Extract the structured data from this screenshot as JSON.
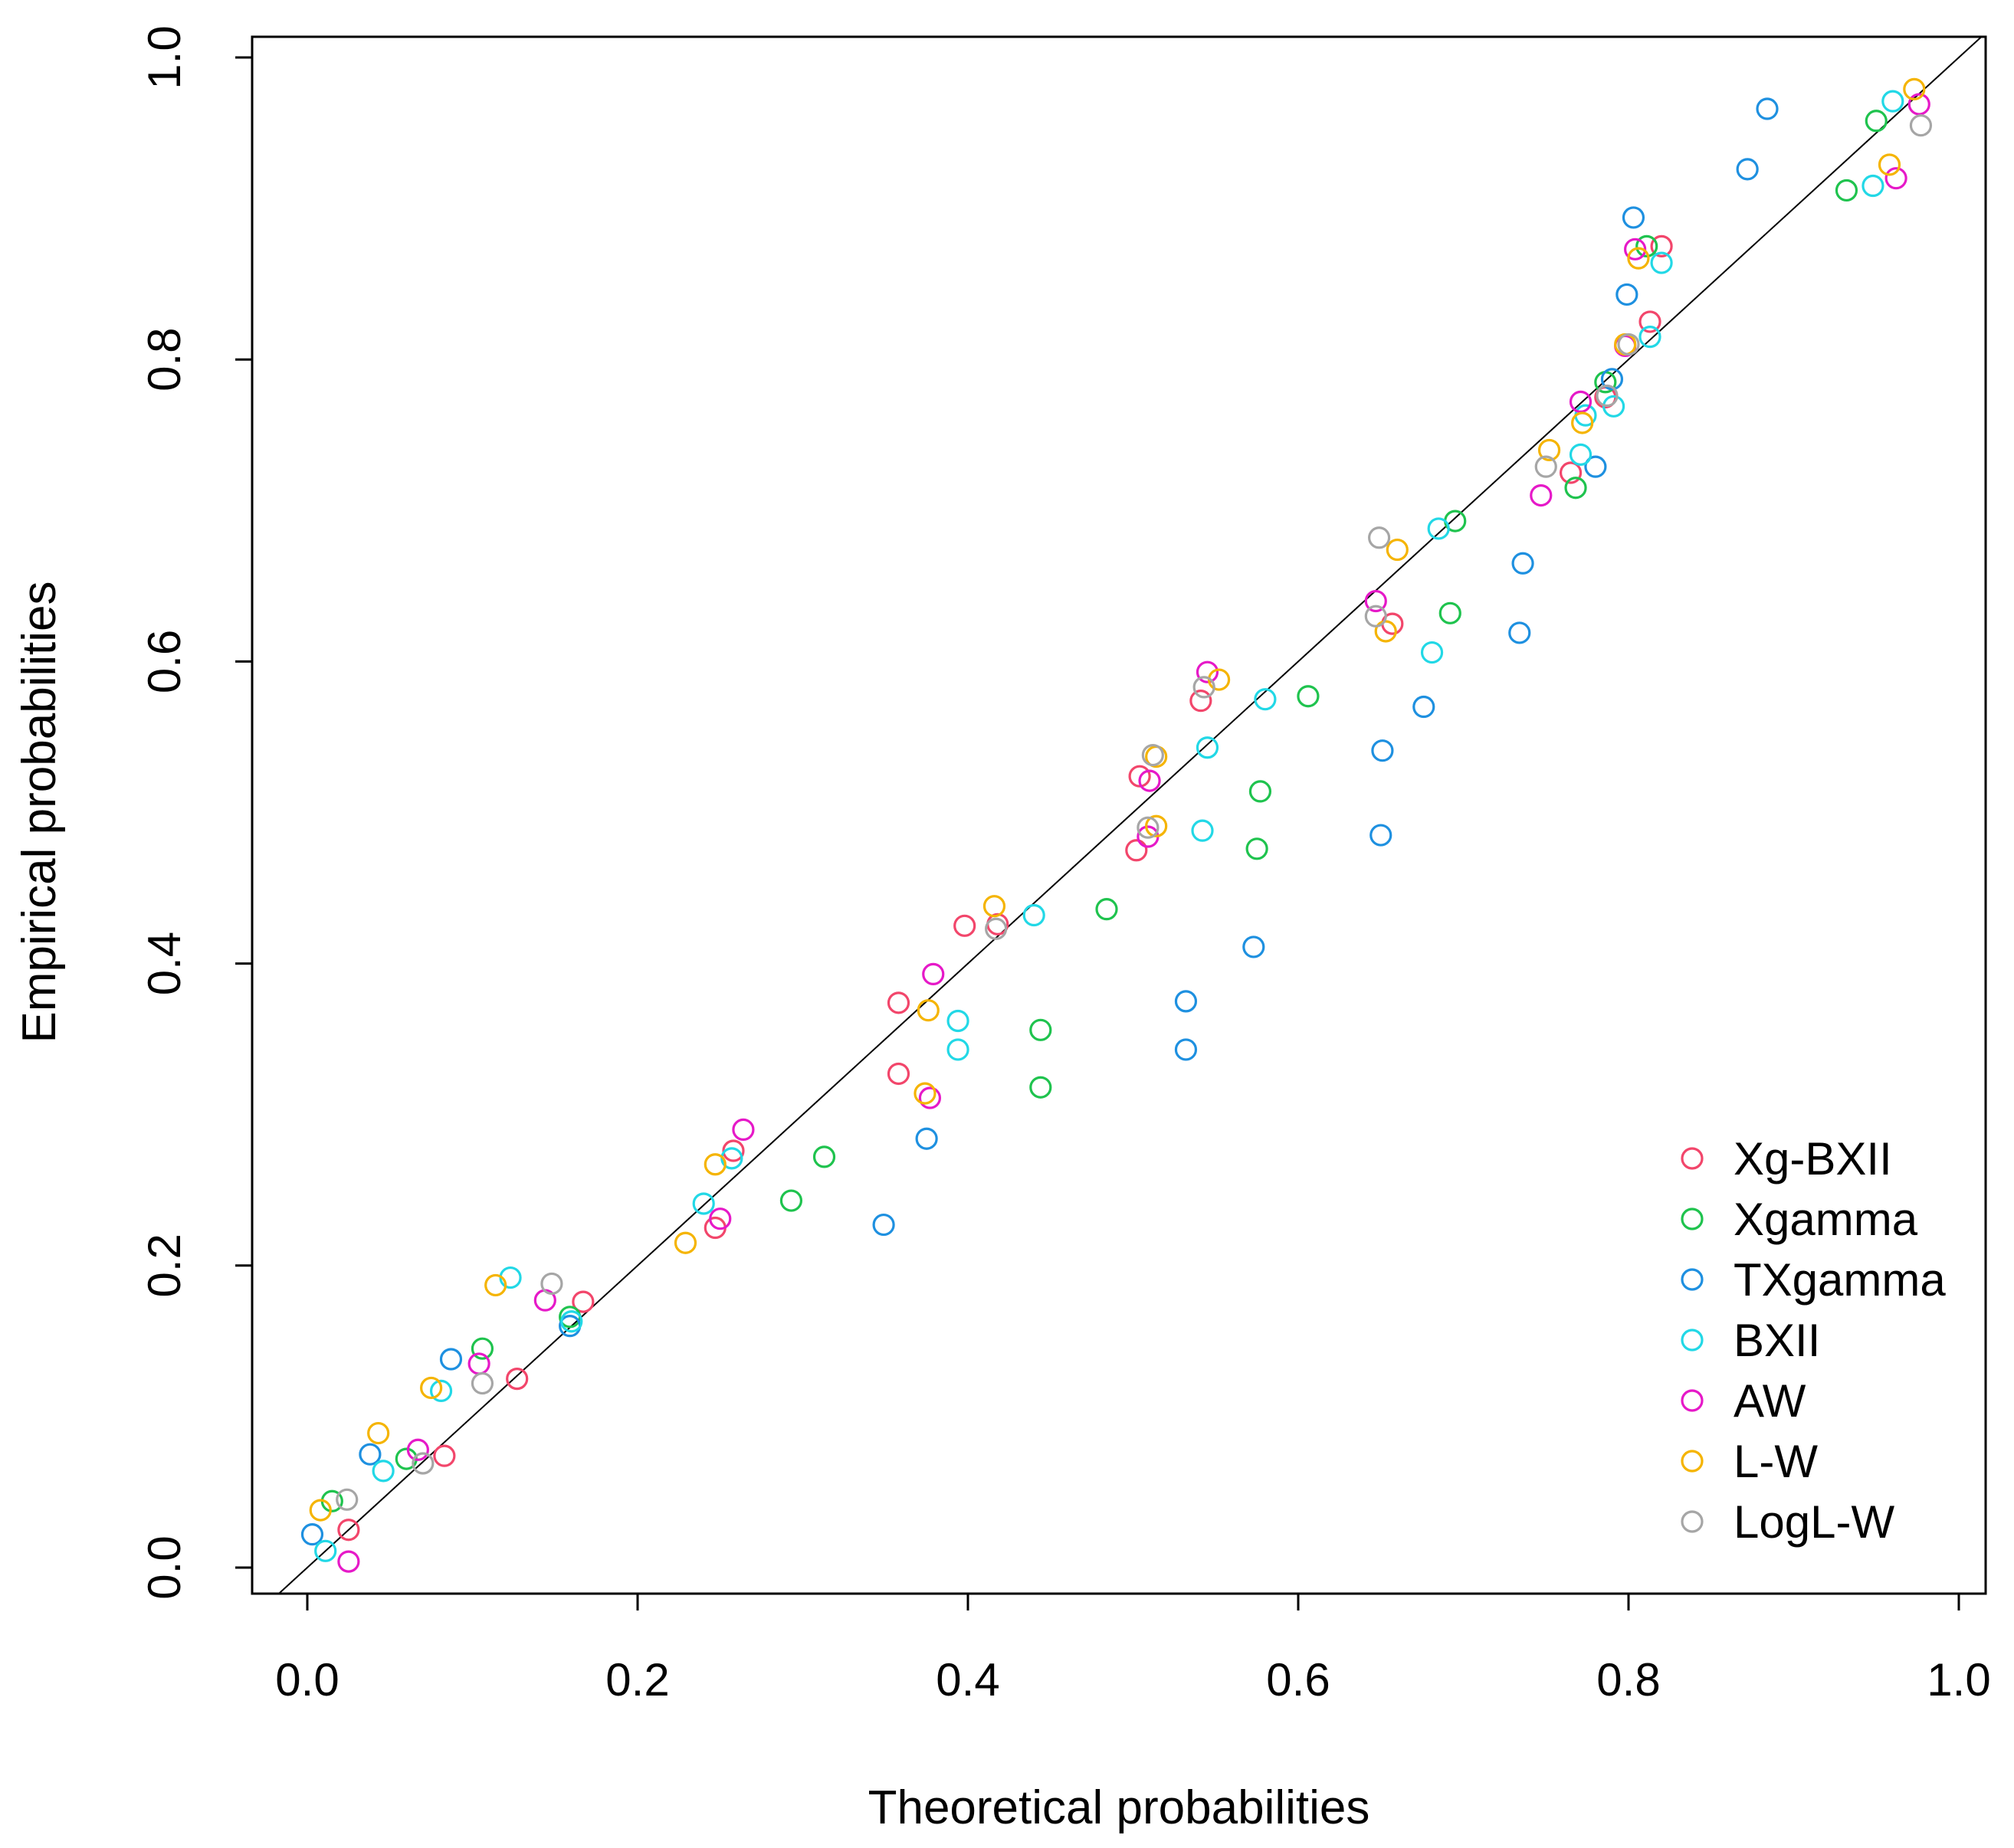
{
  "chart_data": {
    "type": "scatter",
    "title": "",
    "xlabel": "Theoretical probabilities",
    "ylabel": "Empirical probabilities",
    "xlim": [
      0.0,
      1.0
    ],
    "ylim": [
      0.0,
      1.0
    ],
    "xticks": [
      "0.0",
      "0.2",
      "0.4",
      "0.6",
      "0.8",
      "1.0"
    ],
    "yticks": [
      "0.0",
      "0.2",
      "0.4",
      "0.6",
      "0.8",
      "1.0"
    ],
    "reference_line": "y = x",
    "legend_position": "bottom-right",
    "series": [
      {
        "name": "Xg-BXII",
        "color": "#F2466B",
        "x": [
          0.025,
          0.083,
          0.127,
          0.167,
          0.247,
          0.258,
          0.358,
          0.358,
          0.398,
          0.418,
          0.502,
          0.504,
          0.541,
          0.657,
          0.765,
          0.786,
          0.813,
          0.82
        ],
        "y": [
          0.025,
          0.074,
          0.125,
          0.176,
          0.225,
          0.276,
          0.327,
          0.374,
          0.425,
          0.426,
          0.475,
          0.524,
          0.574,
          0.625,
          0.725,
          0.775,
          0.825,
          0.875
        ]
      },
      {
        "name": "Xgamma",
        "color": "#1FC34E",
        "x": [
          0.015,
          0.06,
          0.106,
          0.159,
          0.293,
          0.313,
          0.444,
          0.444,
          0.484,
          0.575,
          0.577,
          0.606,
          0.692,
          0.695,
          0.768,
          0.786,
          0.811,
          0.932,
          0.95
        ],
        "y": [
          0.044,
          0.072,
          0.145,
          0.166,
          0.243,
          0.272,
          0.318,
          0.356,
          0.436,
          0.476,
          0.514,
          0.577,
          0.632,
          0.693,
          0.715,
          0.785,
          0.875,
          0.912,
          0.958
        ]
      },
      {
        "name": "TXgamma",
        "color": "#1E90E0",
        "x": [
          0.003,
          0.038,
          0.087,
          0.159,
          0.349,
          0.375,
          0.532,
          0.532,
          0.573,
          0.65,
          0.651,
          0.676,
          0.734,
          0.736,
          0.78,
          0.79,
          0.799,
          0.803,
          0.872,
          0.884
        ],
        "y": [
          0.022,
          0.075,
          0.138,
          0.16,
          0.227,
          0.284,
          0.343,
          0.375,
          0.411,
          0.485,
          0.541,
          0.57,
          0.619,
          0.665,
          0.729,
          0.787,
          0.843,
          0.894,
          0.926,
          0.966
        ]
      },
      {
        "name": "BXII",
        "color": "#22D8E6",
        "x": [
          0.011,
          0.046,
          0.081,
          0.123,
          0.16,
          0.24,
          0.257,
          0.394,
          0.394,
          0.44,
          0.542,
          0.545,
          0.58,
          0.681,
          0.685,
          0.771,
          0.774,
          0.791,
          0.813,
          0.82,
          0.948,
          0.96
        ],
        "y": [
          0.011,
          0.064,
          0.117,
          0.192,
          0.163,
          0.241,
          0.271,
          0.343,
          0.362,
          0.432,
          0.488,
          0.543,
          0.575,
          0.606,
          0.688,
          0.737,
          0.763,
          0.769,
          0.815,
          0.864,
          0.915,
          0.971
        ]
      },
      {
        "name": "AW",
        "color": "#E619C8",
        "x": [
          0.025,
          0.067,
          0.104,
          0.144,
          0.25,
          0.264,
          0.377,
          0.379,
          0.509,
          0.51,
          0.545,
          0.647,
          0.747,
          0.771,
          0.798,
          0.804,
          0.962,
          0.976
        ],
        "y": [
          0.004,
          0.078,
          0.135,
          0.177,
          0.231,
          0.29,
          0.311,
          0.393,
          0.484,
          0.521,
          0.593,
          0.64,
          0.71,
          0.772,
          0.809,
          0.873,
          0.92,
          0.969
        ]
      },
      {
        "name": "L-W",
        "color": "#F5B400",
        "x": [
          0.008,
          0.043,
          0.075,
          0.114,
          0.229,
          0.247,
          0.374,
          0.376,
          0.416,
          0.514,
          0.514,
          0.552,
          0.653,
          0.66,
          0.752,
          0.772,
          0.798,
          0.806,
          0.958,
          0.973
        ],
        "y": [
          0.038,
          0.089,
          0.119,
          0.187,
          0.215,
          0.267,
          0.314,
          0.369,
          0.438,
          0.491,
          0.537,
          0.588,
          0.62,
          0.674,
          0.74,
          0.758,
          0.81,
          0.867,
          0.929,
          0.979
        ]
      },
      {
        "name": "LogL-W",
        "color": "#A6A6A6",
        "x": [
          0.024,
          0.07,
          0.106,
          0.148,
          0.417,
          0.509,
          0.512,
          0.543,
          0.647,
          0.649,
          0.75,
          0.787,
          0.8,
          0.977
        ],
        "y": [
          0.045,
          0.069,
          0.122,
          0.188,
          0.423,
          0.49,
          0.538,
          0.583,
          0.63,
          0.682,
          0.729,
          0.776,
          0.81,
          0.955
        ]
      }
    ]
  }
}
